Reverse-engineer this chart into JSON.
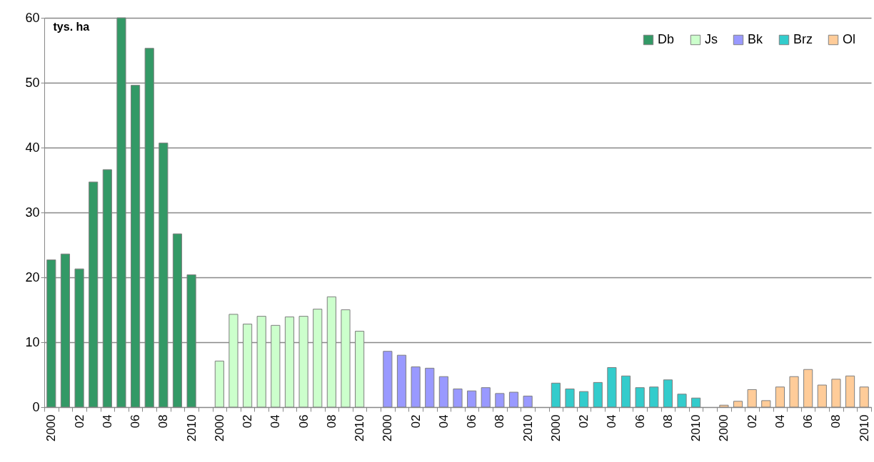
{
  "chart_data": {
    "type": "bar",
    "ylabel": "tys. ha",
    "categories": [
      "2000",
      null,
      "02",
      null,
      "04",
      null,
      "06",
      null,
      "08",
      null,
      "2010",
      null,
      "2000",
      null,
      "02",
      null,
      "04",
      null,
      "06",
      null,
      "08",
      null,
      "2010",
      null,
      "2000",
      null,
      "02",
      null,
      "04",
      null,
      "06",
      null,
      "08",
      null,
      "2010",
      null,
      "2000",
      null,
      "02",
      null,
      "04",
      null,
      "06",
      null,
      "08",
      null,
      "2010",
      null,
      "2000",
      null,
      "02",
      null,
      "04",
      null,
      "06",
      null,
      "08",
      null,
      "2010"
    ],
    "series": [
      {
        "name": "Db",
        "color": "#339966",
        "values": [
          22.7,
          23.6,
          21.3,
          34.7,
          36.6,
          60,
          49.6,
          55.3,
          40.7,
          26.7,
          20.4,
          null,
          null,
          null,
          null,
          null,
          null,
          null,
          null,
          null,
          null,
          null,
          null,
          null,
          null,
          null,
          null,
          null,
          null,
          null,
          null,
          null,
          null,
          null,
          null,
          null,
          null,
          null,
          null,
          null,
          null,
          null,
          null,
          null,
          null,
          null,
          null,
          null,
          null,
          null,
          null,
          null,
          null,
          null,
          null,
          null,
          null,
          null,
          null
        ]
      },
      {
        "name": "Js",
        "color": "#ccffcc",
        "values": [
          null,
          null,
          null,
          null,
          null,
          null,
          null,
          null,
          null,
          null,
          null,
          null,
          7.1,
          14.3,
          12.8,
          14.0,
          12.6,
          13.9,
          14.0,
          15.1,
          17.0,
          15.0,
          11.7,
          null,
          null,
          null,
          null,
          null,
          null,
          null,
          null,
          null,
          null,
          null,
          null,
          null,
          null,
          null,
          null,
          null,
          null,
          null,
          null,
          null,
          null,
          null,
          null,
          null,
          null,
          null,
          null,
          null,
          null,
          null,
          null,
          null,
          null,
          null,
          null
        ]
      },
      {
        "name": "Bk",
        "color": "#9999ff",
        "values": [
          null,
          null,
          null,
          null,
          null,
          null,
          null,
          null,
          null,
          null,
          null,
          null,
          null,
          null,
          null,
          null,
          null,
          null,
          null,
          null,
          null,
          null,
          null,
          null,
          8.6,
          8.0,
          6.2,
          6.0,
          4.7,
          2.8,
          2.5,
          3.0,
          2.1,
          2.3,
          1.7,
          null,
          null,
          null,
          null,
          null,
          null,
          null,
          null,
          null,
          null,
          null,
          null,
          null,
          null,
          null,
          null,
          null,
          null,
          null,
          null,
          null,
          null,
          null,
          null
        ]
      },
      {
        "name": "Brz",
        "color": "#33cccc",
        "values": [
          null,
          null,
          null,
          null,
          null,
          null,
          null,
          null,
          null,
          null,
          null,
          null,
          null,
          null,
          null,
          null,
          null,
          null,
          null,
          null,
          null,
          null,
          null,
          null,
          null,
          null,
          null,
          null,
          null,
          null,
          null,
          null,
          null,
          null,
          null,
          null,
          3.7,
          2.8,
          2.4,
          3.8,
          6.1,
          4.8,
          3.0,
          3.1,
          4.2,
          2.0,
          1.4,
          null,
          null,
          null,
          null,
          null,
          null,
          null,
          null,
          null,
          null,
          null,
          null
        ]
      },
      {
        "name": "Ol",
        "color": "#ffcc99",
        "values": [
          null,
          null,
          null,
          null,
          null,
          null,
          null,
          null,
          null,
          null,
          null,
          null,
          null,
          null,
          null,
          null,
          null,
          null,
          null,
          null,
          null,
          null,
          null,
          null,
          null,
          null,
          null,
          null,
          null,
          null,
          null,
          null,
          null,
          null,
          null,
          null,
          null,
          null,
          null,
          null,
          null,
          null,
          null,
          null,
          null,
          null,
          null,
          null,
          0.3,
          0.9,
          2.7,
          1.0,
          3.1,
          4.7,
          5.8,
          3.4,
          4.3,
          4.8,
          3.1
        ]
      }
    ],
    "ylim": [
      0,
      60
    ],
    "yticks": [
      0,
      10,
      20,
      30,
      40,
      50,
      60
    ],
    "grid": "y",
    "legend": "top right"
  }
}
